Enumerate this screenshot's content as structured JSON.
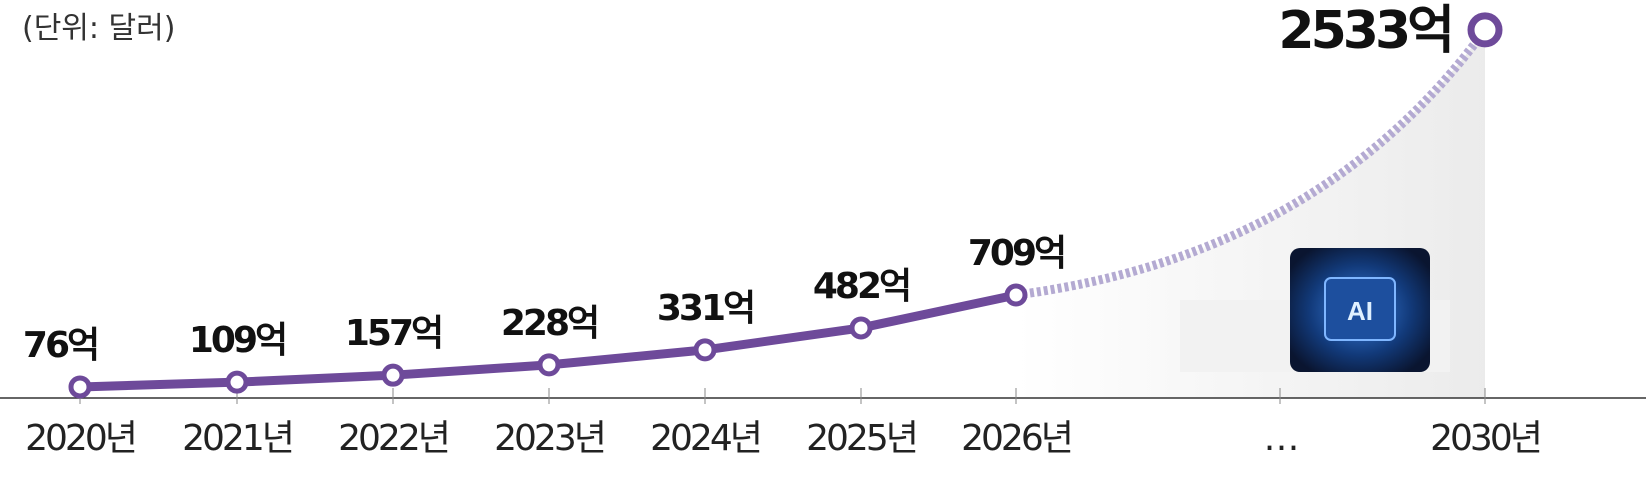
{
  "chart_data": {
    "type": "line",
    "unit_note": "(단위: 달러)",
    "categories": [
      "2020년",
      "2021년",
      "2022년",
      "2023년",
      "2024년",
      "2025년",
      "2026년",
      "…",
      "2030년"
    ],
    "values": [
      76,
      109,
      157,
      228,
      331,
      482,
      709,
      null,
      2533
    ],
    "value_labels": [
      "76억",
      "109억",
      "157억",
      "228억",
      "331억",
      "482억",
      "709억",
      null,
      "2533억"
    ],
    "color": "#6e4a9a",
    "projection_color": "#b4aad2",
    "ylim": [
      0,
      2560
    ]
  }
}
